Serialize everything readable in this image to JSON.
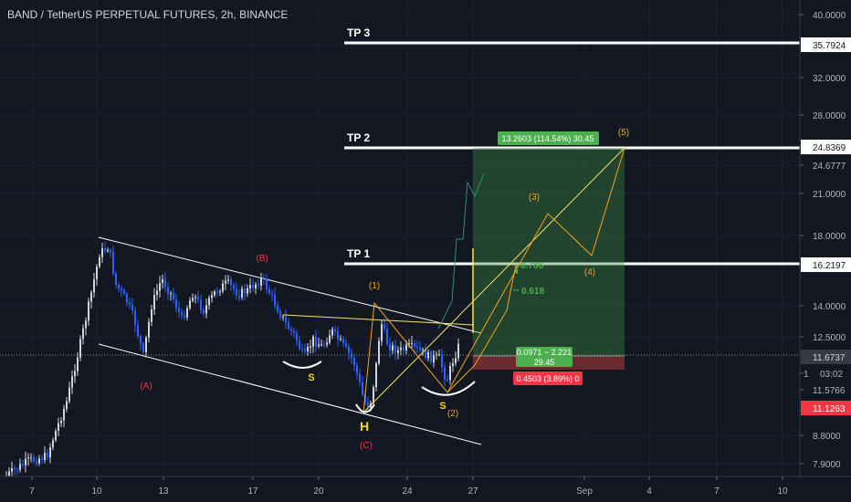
{
  "header": {
    "title": "BAND / TetherUS PERPETUAL FUTURES, 2h, BINANCE"
  },
  "colors": {
    "background": "#131722",
    "bull": "#d1d4dc",
    "bear": "#2962ff",
    "wave_orange": "#f7a21b",
    "channel": "#ffffff",
    "yellow_line": "#f5e663",
    "green_box": "#3d8b40",
    "red_box": "#b23a3a",
    "last_price_tag": "#f23645",
    "fib_green": "#4caf50"
  },
  "chart_data": {
    "type": "candlestick",
    "price_axis_labels": [
      "40.0000",
      "35.7924",
      "32.0000",
      "28.0000",
      "24.8369",
      "24.6777",
      "21.0000",
      "18.0000",
      "16.2197",
      "14.0000",
      "12.5000",
      "11.6737",
      "1",
      "03:02",
      "11.5766",
      "11.1263",
      "8.8000",
      "7.9000"
    ],
    "date_axis_labels": [
      "7",
      "10",
      "13",
      "17",
      "20",
      "24",
      "27",
      "Sep",
      "4",
      "7",
      "10"
    ],
    "tp_levels": [
      {
        "label": "TP 3",
        "value": 35.7924
      },
      {
        "label": "TP 2",
        "value": 24.8369
      },
      {
        "label": "TP 1",
        "value": 16.2197
      }
    ],
    "wave_labels": [
      "(A)",
      "(B)",
      "(C)",
      "(1)",
      "(2)",
      "(3)",
      "(4)",
      "(5)"
    ],
    "pattern_labels": [
      "S",
      "H",
      "S"
    ],
    "fib_labels": [
      "0.786",
      "0.618"
    ],
    "position": {
      "target_text": "13.2603 (114.54%) 30.45",
      "entry_text": "0.0971 ~ 2.221",
      "entry_value_text": "29.45",
      "stop_text": "0.4503 (3.89%) 0"
    }
  }
}
